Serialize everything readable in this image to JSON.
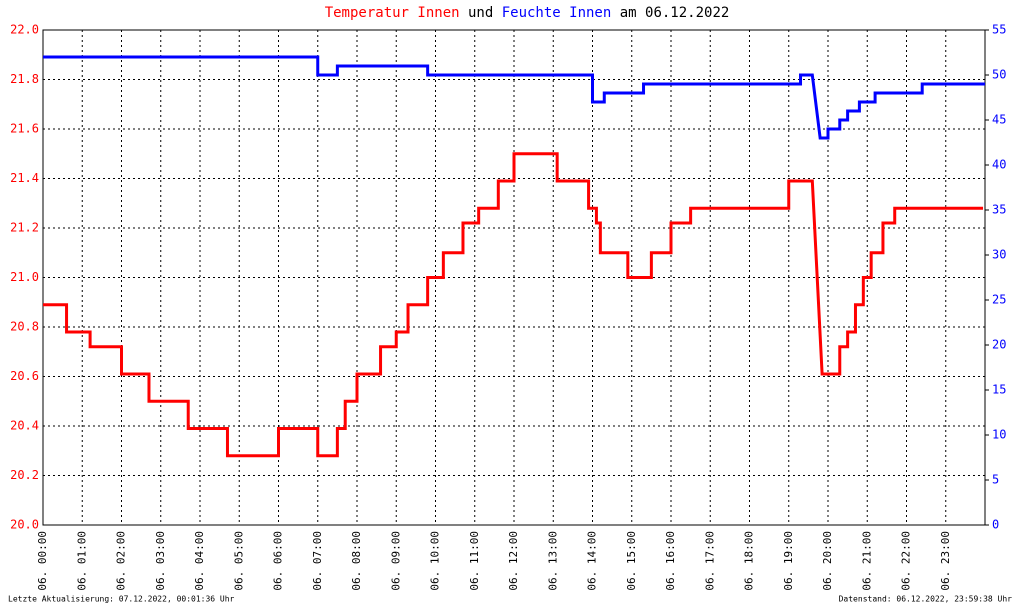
{
  "chart_data": {
    "type": "line",
    "drawstyle": "steps",
    "title_parts": [
      {
        "text": "Temperatur Innen",
        "color": "#ff0000"
      },
      {
        "text": "und",
        "color": "#000000"
      },
      {
        "text": "Feuchte Innen",
        "color": "#0000ff"
      },
      {
        "text": "am 06.12.2022",
        "color": "#000000"
      }
    ],
    "xlim": [
      0,
      24
    ],
    "xticks": [
      {
        "value": 0,
        "label": "06. 00:00"
      },
      {
        "value": 1,
        "label": "06. 01:00"
      },
      {
        "value": 2,
        "label": "06. 02:00"
      },
      {
        "value": 3,
        "label": "06. 03:00"
      },
      {
        "value": 4,
        "label": "06. 04:00"
      },
      {
        "value": 5,
        "label": "06. 05:00"
      },
      {
        "value": 6,
        "label": "06. 06:00"
      },
      {
        "value": 7,
        "label": "06. 07:00"
      },
      {
        "value": 8,
        "label": "06. 08:00"
      },
      {
        "value": 9,
        "label": "06. 09:00"
      },
      {
        "value": 10,
        "label": "06. 10:00"
      },
      {
        "value": 11,
        "label": "06. 11:00"
      },
      {
        "value": 12,
        "label": "06. 12:00"
      },
      {
        "value": 13,
        "label": "06. 13:00"
      },
      {
        "value": 14,
        "label": "06. 14:00"
      },
      {
        "value": 15,
        "label": "06. 15:00"
      },
      {
        "value": 16,
        "label": "06. 16:00"
      },
      {
        "value": 17,
        "label": "06. 17:00"
      },
      {
        "value": 18,
        "label": "06. 18:00"
      },
      {
        "value": 19,
        "label": "06. 19:00"
      },
      {
        "value": 20,
        "label": "06. 20:00"
      },
      {
        "value": 21,
        "label": "06. 21:00"
      },
      {
        "value": 22,
        "label": "06. 22:00"
      },
      {
        "value": 23,
        "label": "06. 23:00"
      }
    ],
    "ylim": [
      20,
      22
    ],
    "yticks": [
      {
        "value": 20,
        "label": "20.0"
      },
      20.2,
      20.4,
      20.6,
      20.8,
      {
        "value": 21,
        "label": "21.0"
      },
      21.2,
      21.4,
      21.6,
      21.8,
      {
        "value": 22,
        "label": "22.0"
      }
    ],
    "y2lim": [
      0,
      55
    ],
    "y2ticks": [
      0,
      5,
      10,
      15,
      20,
      25,
      30,
      35,
      40,
      45,
      50,
      55
    ],
    "grid": true,
    "series": [
      {
        "name": "Temperatur Innen",
        "color": "#ff0000",
        "axis": "y",
        "x": [
          0,
          0.6,
          0.6,
          1.2,
          1.2,
          2,
          2,
          2.7,
          2.7,
          3.7,
          3.7,
          4.7,
          4.7,
          6,
          6,
          7,
          7,
          7.5,
          7.5,
          7.7,
          7.7,
          8,
          8,
          8.6,
          8.6,
          9,
          9,
          9.3,
          9.3,
          9.8,
          9.8,
          10.2,
          10.2,
          10.7,
          10.7,
          11.1,
          11.1,
          11.6,
          11.6,
          12,
          12,
          13.1,
          13.1,
          13.9,
          13.9,
          14.1,
          14.1,
          14.2,
          14.2,
          14.9,
          14.9,
          15.5,
          15.5,
          16,
          16,
          16.5,
          16.5,
          19,
          19,
          19.6,
          19.85,
          20.3,
          20.3,
          20.5,
          20.5,
          20.7,
          20.7,
          20.9,
          20.9,
          21.1,
          21.1,
          21.4,
          21.4,
          21.7,
          21.7,
          23.95
        ],
        "values": [
          20.89,
          20.89,
          20.78,
          20.78,
          20.72,
          20.72,
          20.61,
          20.61,
          20.5,
          20.5,
          20.39,
          20.39,
          20.28,
          20.28,
          20.39,
          20.39,
          20.28,
          20.28,
          20.39,
          20.39,
          20.5,
          20.5,
          20.61,
          20.61,
          20.72,
          20.72,
          20.78,
          20.78,
          20.89,
          20.89,
          21.0,
          21.0,
          21.1,
          21.1,
          21.22,
          21.22,
          21.28,
          21.28,
          21.39,
          21.39,
          21.5,
          21.5,
          21.39,
          21.39,
          21.28,
          21.28,
          21.22,
          21.22,
          21.1,
          21.1,
          21.0,
          21.0,
          21.1,
          21.1,
          21.22,
          21.22,
          21.28,
          21.28,
          21.39,
          21.39,
          20.61,
          20.61,
          20.72,
          20.72,
          20.78,
          20.78,
          20.89,
          20.89,
          21.0,
          21.0,
          21.1,
          21.1,
          21.22,
          21.22,
          21.28,
          21.28
        ]
      },
      {
        "name": "Feuchte Innen",
        "color": "#0000ff",
        "axis": "y2",
        "x": [
          0,
          7,
          7,
          7.5,
          7.5,
          9.8,
          9.8,
          14,
          14,
          14.3,
          14.3,
          15.3,
          15.3,
          19.3,
          19.3,
          19.6,
          19.8,
          20,
          20,
          20.3,
          20.3,
          20.5,
          20.5,
          20.8,
          20.8,
          21.2,
          21.2,
          22.4,
          22.4,
          24
        ],
        "values": [
          52,
          52,
          50,
          50,
          51,
          51,
          50,
          50,
          47,
          47,
          48,
          48,
          49,
          49,
          50,
          50,
          43,
          43,
          44,
          44,
          45,
          45,
          46,
          46,
          47,
          47,
          48,
          48,
          49,
          49
        ]
      }
    ]
  },
  "footer": {
    "left": "Letzte Aktualisierung: 07.12.2022, 00:01:36 Uhr",
    "right": "Datenstand: 06.12.2022, 23:59:38 Uhr"
  }
}
